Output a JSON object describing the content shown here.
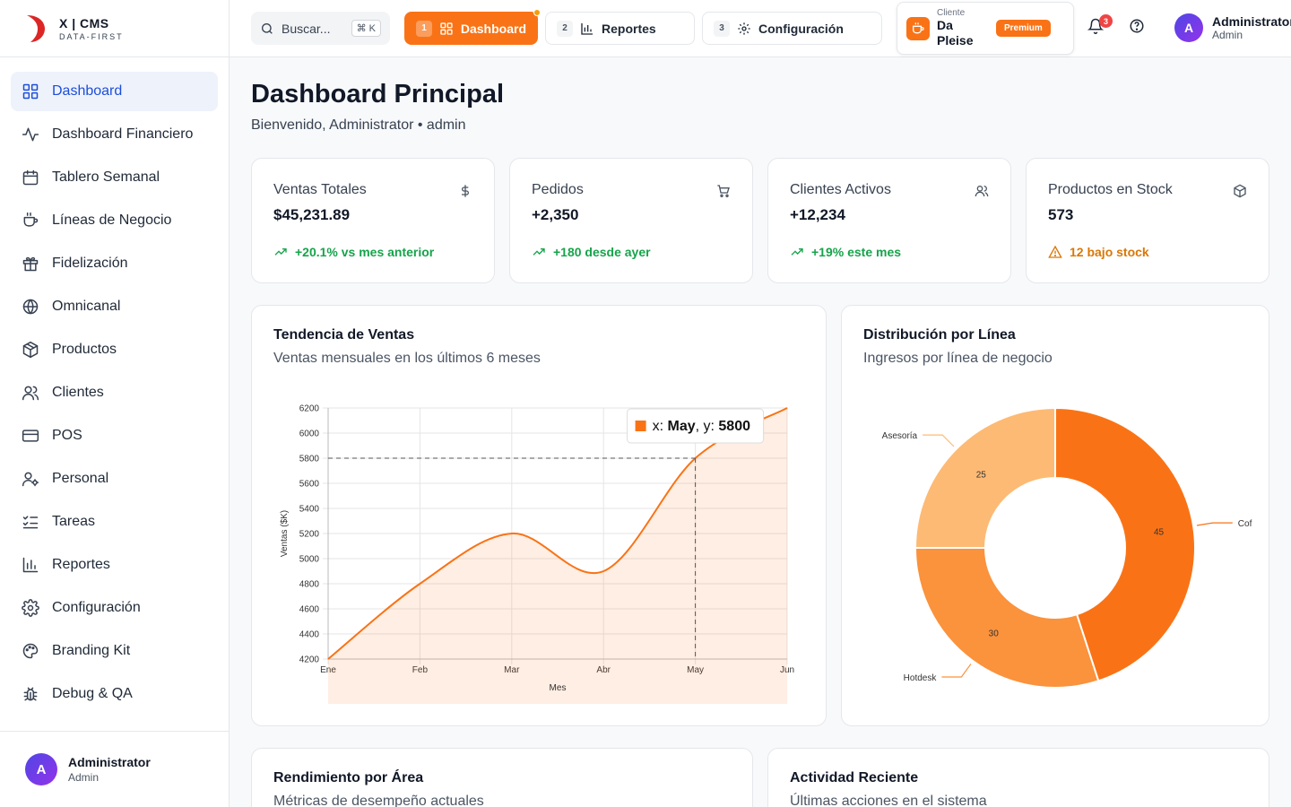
{
  "brand": {
    "name": "X | CMS",
    "tagline": "DATA-FIRST"
  },
  "sidebar": {
    "items": [
      {
        "label": "Dashboard",
        "icon": "grid-icon",
        "active": true
      },
      {
        "label": "Dashboard Financiero",
        "icon": "activity-icon"
      },
      {
        "label": "Tablero Semanal",
        "icon": "calendar-icon"
      },
      {
        "label": "Líneas de Negocio",
        "icon": "coffee-icon"
      },
      {
        "label": "Fidelización",
        "icon": "gift-icon"
      },
      {
        "label": "Omnicanal",
        "icon": "globe-icon"
      },
      {
        "label": "Productos",
        "icon": "package-icon"
      },
      {
        "label": "Clientes",
        "icon": "users-icon"
      },
      {
        "label": "POS",
        "icon": "credit-card-icon"
      },
      {
        "label": "Personal",
        "icon": "user-cog-icon"
      },
      {
        "label": "Tareas",
        "icon": "list-checks-icon"
      },
      {
        "label": "Reportes",
        "icon": "bar-chart-icon"
      },
      {
        "label": "Configuración",
        "icon": "settings-icon"
      },
      {
        "label": "Branding Kit",
        "icon": "palette-icon"
      },
      {
        "label": "Debug & QA",
        "icon": "bug-icon"
      }
    ],
    "user": {
      "initial": "A",
      "name": "Administrator",
      "role": "Admin"
    }
  },
  "topbar": {
    "search": {
      "placeholder": "Buscar...",
      "shortcut": "⌘ K"
    },
    "tabs": [
      {
        "num": "1",
        "label": "Dashboard",
        "icon": "grid-icon",
        "active": true
      },
      {
        "num": "2",
        "label": "Reportes",
        "icon": "bar-chart-icon"
      },
      {
        "num": "3",
        "label": "Configuración",
        "icon": "settings-icon"
      }
    ],
    "client": {
      "label": "Cliente",
      "name": "Da Pleise",
      "plan": "Premium"
    },
    "notifications": {
      "count": "3"
    },
    "user": {
      "initial": "A",
      "name": "Administrator",
      "role": "Admin"
    }
  },
  "page": {
    "title": "Dashboard Principal",
    "subtitle": "Bienvenido, Administrator • admin"
  },
  "stats": [
    {
      "label": "Ventas Totales",
      "value": "$45,231.89",
      "trend": "+20.1% vs mes anterior",
      "icon": "dollar-icon",
      "status": "up"
    },
    {
      "label": "Pedidos",
      "value": "+2,350",
      "trend": "+180 desde ayer",
      "icon": "cart-icon",
      "status": "up"
    },
    {
      "label": "Clientes Activos",
      "value": "+12,234",
      "trend": "+19% este mes",
      "icon": "users-icon",
      "status": "up"
    },
    {
      "label": "Productos en Stock",
      "value": "573",
      "trend": "12 bajo stock",
      "icon": "box-icon",
      "status": "warning"
    }
  ],
  "colors": {
    "accent": "#f97316",
    "success": "#16a34a",
    "warning": "#d97706",
    "active_nav": "#1d4ed8"
  },
  "cards": {
    "sales": {
      "title": "Tendencia de Ventas",
      "subtitle": "Ventas mensuales en los últimos 6 meses"
    },
    "distribution": {
      "title": "Distribución por Línea",
      "subtitle": "Ingresos por línea de negocio"
    },
    "performance": {
      "title": "Rendimiento por Área",
      "subtitle": "Métricas de desempeño actuales"
    },
    "activity": {
      "title": "Actividad Reciente",
      "subtitle": "Últimas acciones en el sistema"
    }
  },
  "chart_data": [
    {
      "type": "area",
      "categories": [
        "Ene",
        "Feb",
        "Mar",
        "Abr",
        "May",
        "Jun"
      ],
      "series": [
        {
          "values": [
            4200,
            4800,
            5200,
            4900,
            5800,
            6200
          ]
        }
      ],
      "xlabel": "Mes",
      "ylabel": "Ventas ($K)",
      "ylim": [
        4200,
        6200
      ],
      "yticks": [
        4200,
        4400,
        4600,
        4800,
        5000,
        5200,
        5400,
        5600,
        5800,
        6000,
        6200
      ],
      "grid": true,
      "tooltip": {
        "prefix_x": "x: ",
        "x": "May",
        "prefix_y": ", y: ",
        "y": "5800"
      }
    },
    {
      "type": "pie",
      "variant": "donut",
      "slices": [
        {
          "label": "Cof",
          "value": 45,
          "color": "#f97316"
        },
        {
          "label": "Hotdesk",
          "value": 30,
          "color": "#fb923c"
        },
        {
          "label": "Asesoría",
          "value": 25,
          "color": "#fdba74"
        }
      ]
    }
  ]
}
